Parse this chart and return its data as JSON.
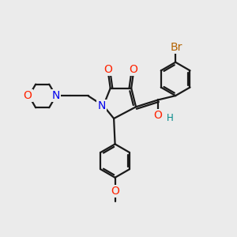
{
  "bg_color": "#ebebeb",
  "bond_color": "#1a1a1a",
  "bond_width": 1.6,
  "atom_colors": {
    "O": "#ff2200",
    "N": "#0000ee",
    "Br": "#b36200",
    "H": "#008888",
    "C": "#1a1a1a"
  },
  "font_size": 8.5
}
